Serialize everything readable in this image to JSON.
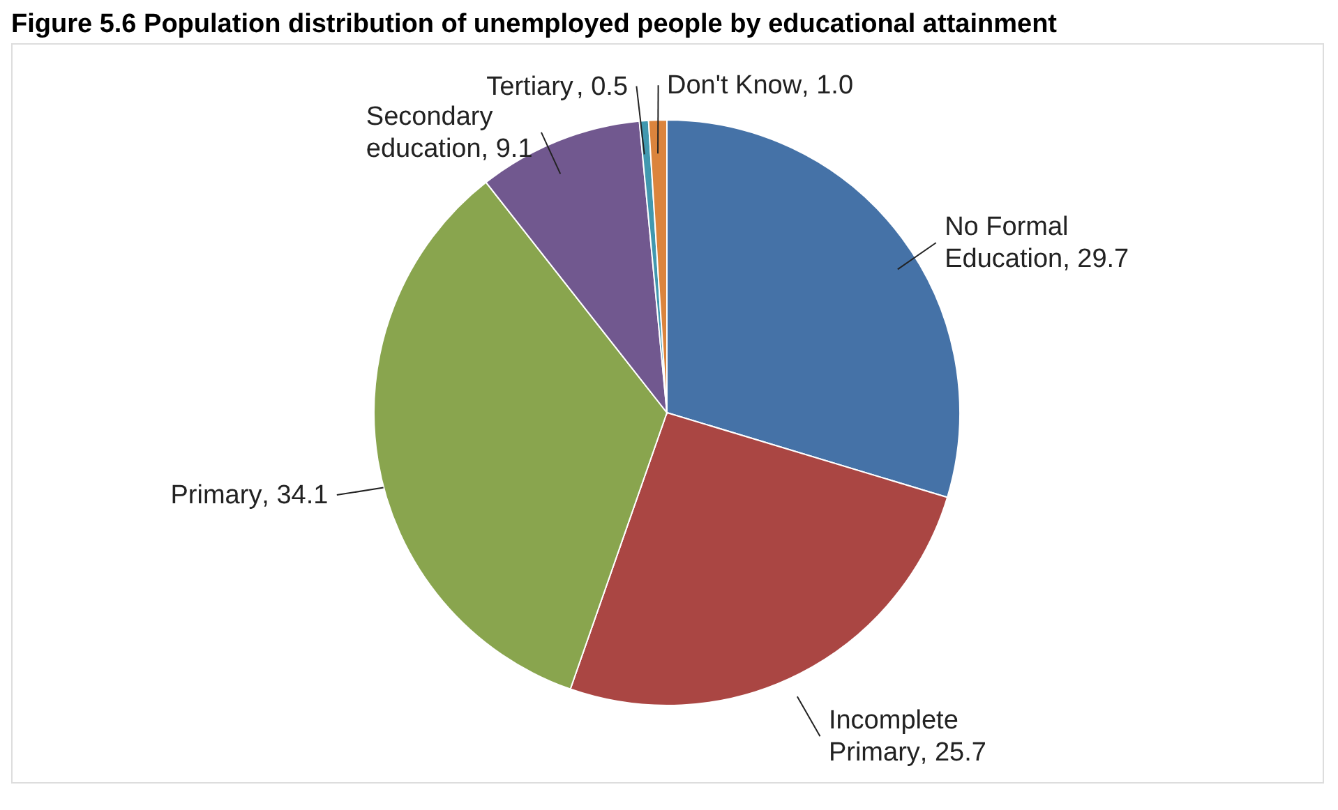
{
  "chart_data": {
    "type": "pie",
    "title": "Figure 5.6 Population distribution of unemployed people by educational attainment",
    "categories": [
      "No Formal Education",
      "Incomplete Primary",
      "Primary",
      "Secondary education",
      "Tertiary",
      "Don't Know"
    ],
    "values": [
      29.7,
      25.7,
      34.1,
      9.1,
      0.5,
      1.0
    ],
    "colors": [
      "#4572a7",
      "#aa4643",
      "#89a54e",
      "#71588f",
      "#4198af",
      "#db843d"
    ],
    "value_labels": [
      ", 29.7",
      ", 25.7",
      ", 34.1",
      ", 9.1",
      ", 0.5",
      ", 1.0"
    ],
    "legend": false
  }
}
